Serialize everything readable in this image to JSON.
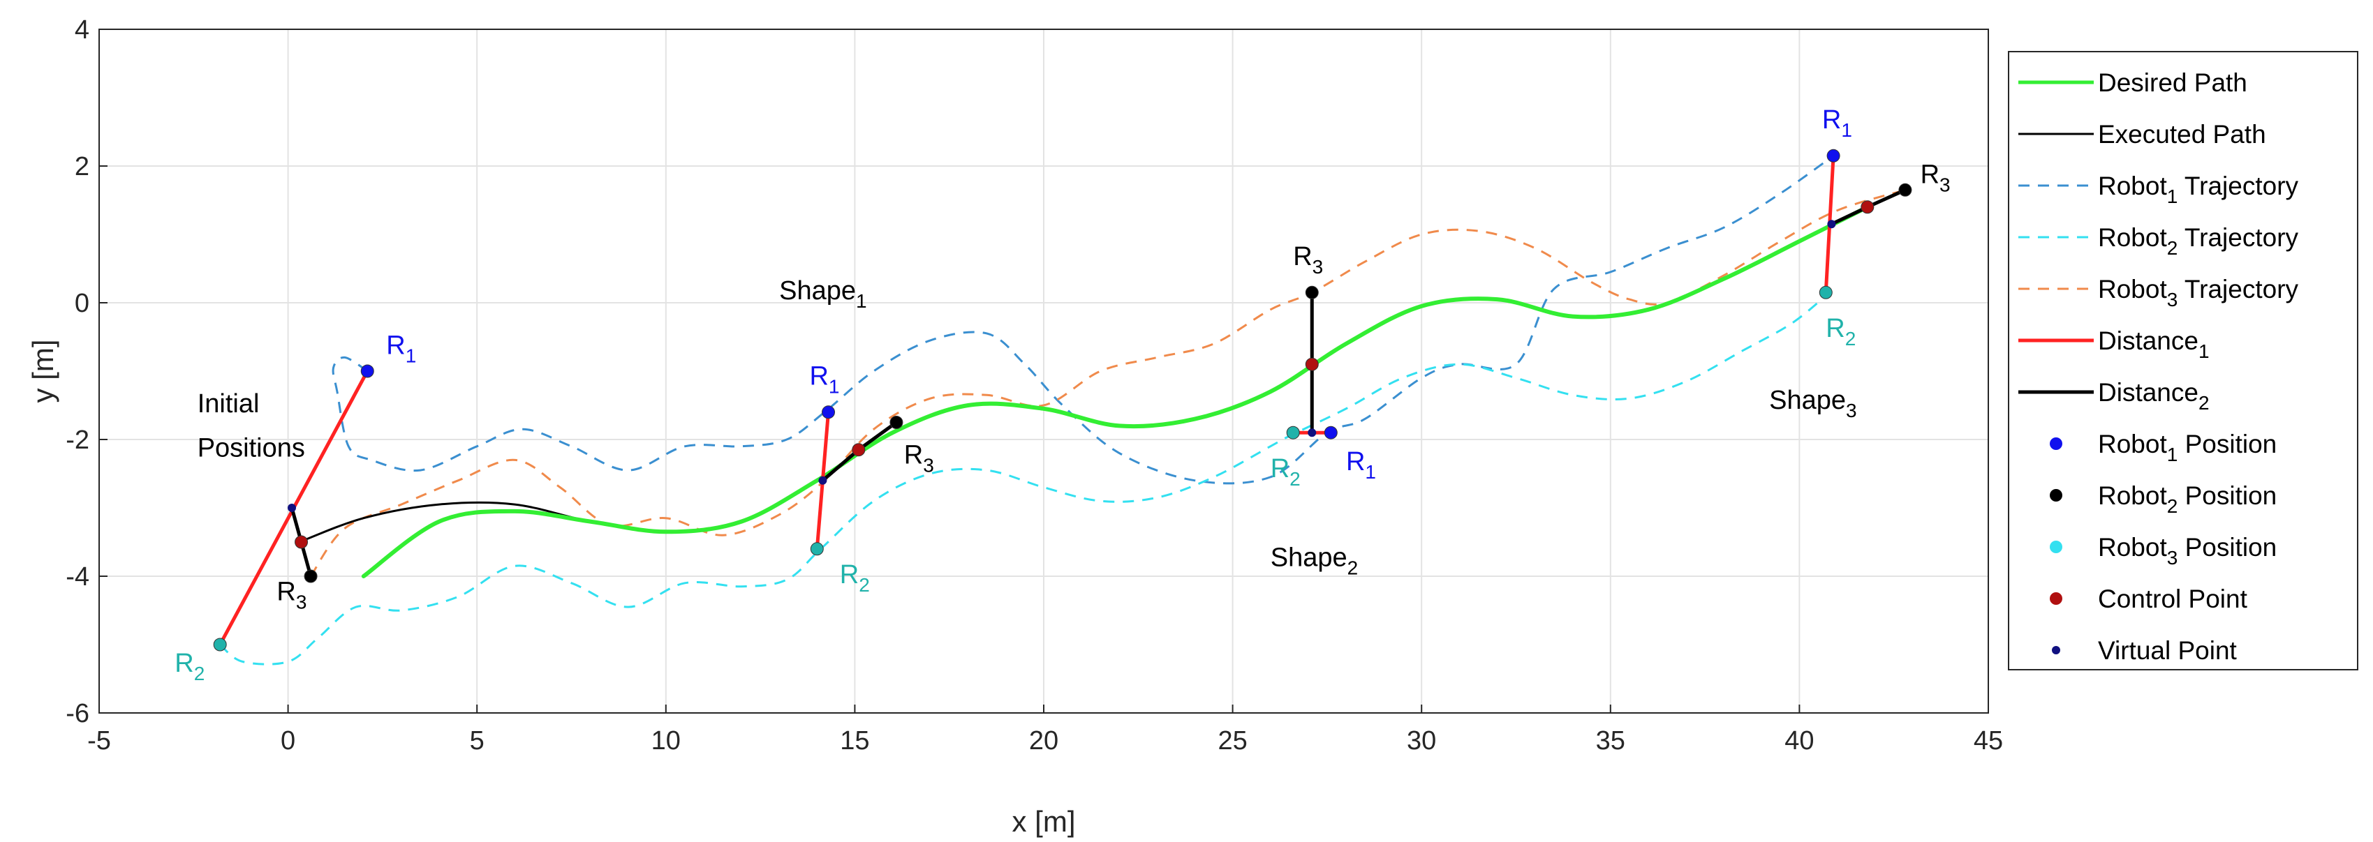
{
  "chart_data": {
    "type": "line",
    "title": "",
    "xlabel": "x [m]",
    "ylabel": "y [m]",
    "xlim": [
      -5,
      45
    ],
    "ylim": [
      -6,
      4
    ],
    "grid": true,
    "x_ticks": [
      -5,
      0,
      5,
      10,
      15,
      20,
      25,
      30,
      35,
      40,
      45
    ],
    "y_ticks": [
      -6,
      -4,
      -2,
      0,
      2,
      4
    ],
    "legend_position": "outside-right",
    "colors": {
      "desired": "#33ee33",
      "executed": "#000000",
      "robot1_traj": "#3a8fd0",
      "robot2_traj": "#33e0f0",
      "robot3_traj": "#f08a4b",
      "distance1": "#ff2222",
      "distance2": "#000000",
      "robot1_pos": "#1010ee",
      "robot2_pos": "#000000",
      "robot3_pos": "#20b2aa",
      "control_point": "#b01010",
      "virtual_point": "#101080"
    },
    "series": [
      {
        "name": "desired_path",
        "style": "solid",
        "color_key": "desired",
        "width": 6,
        "x": [
          2,
          4,
          6,
          8,
          10,
          12,
          14,
          16,
          18,
          20,
          22,
          24,
          26,
          28,
          30,
          32,
          34,
          36,
          38,
          40,
          41.8
        ],
        "y": [
          -4.0,
          -3.2,
          -3.05,
          -3.2,
          -3.35,
          -3.2,
          -2.6,
          -1.9,
          -1.5,
          -1.55,
          -1.8,
          -1.7,
          -1.3,
          -0.6,
          -0.05,
          0.05,
          -0.2,
          -0.1,
          0.35,
          0.9,
          1.4
        ]
      },
      {
        "name": "executed_path",
        "style": "solid",
        "color_key": "executed",
        "width": 3,
        "x": [
          0.3,
          2,
          4,
          6,
          8,
          10,
          12,
          14,
          16,
          18,
          20,
          22,
          24,
          26,
          28,
          30,
          32,
          34,
          36,
          38,
          40,
          41.8
        ],
        "y": [
          -3.5,
          -3.15,
          -2.95,
          -2.95,
          -3.2,
          -3.35,
          -3.2,
          -2.6,
          -1.9,
          -1.5,
          -1.55,
          -1.8,
          -1.7,
          -1.3,
          -0.6,
          -0.05,
          0.05,
          -0.2,
          -0.1,
          0.35,
          0.9,
          1.4
        ]
      },
      {
        "name": "robot1_trajectory",
        "style": "dashed",
        "color_key": "robot1_traj",
        "width": 3,
        "x": [
          2.1,
          1.5,
          1.2,
          1.3,
          1.6,
          2.2,
          3.5,
          5,
          6.2,
          7.5,
          9,
          10.5,
          12,
          13.2,
          14.2,
          15.5,
          17,
          18.5,
          19.5,
          20.5,
          22,
          24,
          26,
          27.5,
          28.5,
          30,
          31,
          32.5,
          33.5,
          35,
          36.5,
          38,
          39.5,
          40.9
        ],
        "y": [
          -1.0,
          -0.8,
          -0.95,
          -1.3,
          -2.1,
          -2.3,
          -2.45,
          -2.1,
          -1.85,
          -2.1,
          -2.45,
          -2.1,
          -2.1,
          -2.0,
          -1.6,
          -1.0,
          -0.55,
          -0.45,
          -0.9,
          -1.5,
          -2.2,
          -2.6,
          -2.55,
          -1.9,
          -1.7,
          -1.1,
          -0.9,
          -0.9,
          0.2,
          0.45,
          0.8,
          1.1,
          1.6,
          2.15
        ]
      },
      {
        "name": "robot2_trajectory",
        "style": "dashed",
        "color_key": "robot2_traj",
        "width": 3,
        "x": [
          -1.8,
          -1.2,
          0,
          0.8,
          1.8,
          3,
          4.5,
          6,
          7.5,
          9,
          10.5,
          12,
          13.2,
          14.1,
          15.5,
          17,
          18.5,
          20,
          21.5,
          23,
          24.5,
          26,
          26.5,
          28,
          29.5,
          31,
          32.5,
          34,
          35.5,
          37,
          38.5,
          39.8,
          40.8
        ],
        "y": [
          -5.0,
          -5.25,
          -5.25,
          -4.9,
          -4.45,
          -4.5,
          -4.3,
          -3.85,
          -4.1,
          -4.45,
          -4.1,
          -4.15,
          -4.05,
          -3.6,
          -2.9,
          -2.5,
          -2.45,
          -2.7,
          -2.9,
          -2.85,
          -2.55,
          -2.1,
          -1.95,
          -1.55,
          -1.1,
          -0.9,
          -1.1,
          -1.35,
          -1.4,
          -1.15,
          -0.7,
          -0.3,
          0.15
        ]
      },
      {
        "name": "robot3_trajectory",
        "style": "dashed",
        "color_key": "robot3_traj",
        "width": 3,
        "x": [
          0.6,
          1.5,
          3,
          4.5,
          6,
          7.2,
          8.5,
          10,
          11.5,
          13,
          14.2,
          15.5,
          17,
          18.5,
          20,
          21.5,
          23,
          24.5,
          26,
          27.1,
          28.5,
          30,
          31.5,
          33,
          34.5,
          35.5,
          36.5,
          38,
          39.5,
          41,
          42.8
        ],
        "y": [
          -4.0,
          -3.3,
          -2.95,
          -2.6,
          -2.3,
          -2.7,
          -3.25,
          -3.15,
          -3.4,
          -3.1,
          -2.6,
          -1.85,
          -1.4,
          -1.35,
          -1.5,
          -1.0,
          -0.8,
          -0.6,
          -0.1,
          0.15,
          0.6,
          1.0,
          1.05,
          0.8,
          0.3,
          0.05,
          0.0,
          0.4,
          0.9,
          1.35,
          1.65
        ]
      },
      {
        "name": "distance1_initial",
        "style": "solid",
        "color_key": "distance1",
        "width": 5,
        "x": [
          2.1,
          -1.8
        ],
        "y": [
          -1.0,
          -5.0
        ]
      },
      {
        "name": "distance1_shape1",
        "style": "solid",
        "color_key": "distance1",
        "width": 5,
        "x": [
          14.3,
          14.0
        ],
        "y": [
          -1.6,
          -3.6
        ]
      },
      {
        "name": "distance1_shape2",
        "style": "solid",
        "color_key": "distance1",
        "width": 5,
        "x": [
          26.6,
          27.6
        ],
        "y": [
          -1.9,
          -1.9
        ]
      },
      {
        "name": "distance1_shape3",
        "style": "solid",
        "color_key": "distance1",
        "width": 5,
        "x": [
          40.9,
          40.7
        ],
        "y": [
          2.15,
          0.15
        ]
      },
      {
        "name": "distance2_initial",
        "style": "solid",
        "color_key": "distance2",
        "width": 5,
        "x": [
          0.1,
          0.35,
          0.6
        ],
        "y": [
          -3.0,
          -3.5,
          -4.0
        ]
      },
      {
        "name": "distance2_shape1",
        "style": "solid",
        "color_key": "distance2",
        "width": 5,
        "x": [
          14.15,
          15.1,
          16.1
        ],
        "y": [
          -2.6,
          -2.15,
          -1.75
        ]
      },
      {
        "name": "distance2_shape2",
        "style": "solid",
        "color_key": "distance2",
        "width": 5,
        "x": [
          27.1,
          27.1,
          27.1
        ],
        "y": [
          0.15,
          -0.9,
          -1.9
        ]
      },
      {
        "name": "distance2_shape3",
        "style": "solid",
        "color_key": "distance2",
        "width": 5,
        "x": [
          40.85,
          41.8,
          42.8
        ],
        "y": [
          1.15,
          1.4,
          1.65
        ]
      }
    ],
    "points": [
      {
        "label": "robot1-initial",
        "x": 2.1,
        "y": -1.0,
        "color_key": "robot1_pos"
      },
      {
        "label": "robot1-shape1",
        "x": 14.3,
        "y": -1.6,
        "color_key": "robot1_pos"
      },
      {
        "label": "robot1-shape2",
        "x": 27.6,
        "y": -1.9,
        "color_key": "robot1_pos"
      },
      {
        "label": "robot1-shape3",
        "x": 40.9,
        "y": 2.15,
        "color_key": "robot1_pos"
      },
      {
        "label": "robot2-initial",
        "x": -1.8,
        "y": -5.0,
        "color_key": "robot3_pos"
      },
      {
        "label": "robot2-shape1",
        "x": 14.0,
        "y": -3.6,
        "color_key": "robot3_pos"
      },
      {
        "label": "robot2-shape2",
        "x": 26.6,
        "y": -1.9,
        "color_key": "robot3_pos"
      },
      {
        "label": "robot2-shape3",
        "x": 40.7,
        "y": 0.15,
        "color_key": "robot3_pos"
      },
      {
        "label": "robot3-initial",
        "x": 0.6,
        "y": -4.0,
        "color_key": "robot2_pos"
      },
      {
        "label": "robot3-shape1",
        "x": 16.1,
        "y": -1.75,
        "color_key": "robot2_pos"
      },
      {
        "label": "robot3-shape2",
        "x": 27.1,
        "y": 0.15,
        "color_key": "robot2_pos"
      },
      {
        "label": "robot3-shape3",
        "x": 42.8,
        "y": 1.65,
        "color_key": "robot2_pos"
      },
      {
        "label": "control-initial",
        "x": 0.35,
        "y": -3.5,
        "color_key": "control_point"
      },
      {
        "label": "control-shape1",
        "x": 15.1,
        "y": -2.15,
        "color_key": "control_point"
      },
      {
        "label": "control-shape2",
        "x": 27.1,
        "y": -0.9,
        "color_key": "control_point"
      },
      {
        "label": "control-shape3",
        "x": 41.8,
        "y": 1.4,
        "color_key": "control_point"
      },
      {
        "label": "virtual-initial",
        "x": 0.1,
        "y": -3.0,
        "color_key": "virtual_point"
      },
      {
        "label": "virtual-shape1",
        "x": 14.15,
        "y": -2.6,
        "color_key": "virtual_point"
      },
      {
        "label": "virtual-shape2",
        "x": 27.1,
        "y": -1.9,
        "color_key": "virtual_point"
      },
      {
        "label": "virtual-shape3",
        "x": 40.85,
        "y": 1.15,
        "color_key": "virtual_point"
      }
    ],
    "annotations": [
      {
        "text": "Initial",
        "x": -2.4,
        "y": -1.6,
        "color_key": "executed"
      },
      {
        "text": "Positions",
        "x": -2.4,
        "y": -2.25,
        "color_key": "executed"
      },
      {
        "text": "R",
        "sub": "1",
        "x": 2.6,
        "y": -0.75,
        "color_key": "robot1_pos"
      },
      {
        "text": "R",
        "sub": "2",
        "x": -3.0,
        "y": -5.4,
        "color_key": "robot3_pos"
      },
      {
        "text": "R",
        "sub": "3",
        "x": -0.3,
        "y": -4.35,
        "color_key": "executed"
      },
      {
        "text": "Shape",
        "sub": "1",
        "x": 13.0,
        "y": 0.05,
        "color_key": "executed"
      },
      {
        "text": "R",
        "sub": "1",
        "x": 13.8,
        "y": -1.2,
        "color_key": "robot1_pos"
      },
      {
        "text": "R",
        "sub": "2",
        "x": 14.6,
        "y": -4.1,
        "color_key": "robot3_pos"
      },
      {
        "text": "R",
        "sub": "3",
        "x": 16.3,
        "y": -2.35,
        "color_key": "executed"
      },
      {
        "text": "R",
        "sub": "3",
        "x": 26.6,
        "y": 0.55,
        "color_key": "executed"
      },
      {
        "text": "R",
        "sub": "2",
        "x": 26.0,
        "y": -2.55,
        "color_key": "robot3_pos"
      },
      {
        "text": "R",
        "sub": "1",
        "x": 28.0,
        "y": -2.45,
        "color_key": "robot1_pos"
      },
      {
        "text": "Shape",
        "sub": "2",
        "x": 26.0,
        "y": -3.85,
        "color_key": "executed"
      },
      {
        "text": "R",
        "sub": "1",
        "x": 40.6,
        "y": 2.55,
        "color_key": "robot1_pos"
      },
      {
        "text": "R",
        "sub": "3",
        "x": 43.2,
        "y": 1.75,
        "color_key": "executed"
      },
      {
        "text": "R",
        "sub": "2",
        "x": 40.7,
        "y": -0.5,
        "color_key": "robot3_pos"
      },
      {
        "text": "Shape",
        "sub": "3",
        "x": 39.2,
        "y": -1.55,
        "color_key": "executed"
      }
    ]
  },
  "legend": [
    {
      "label": "Desired Path",
      "sub": "",
      "suffix": "",
      "kind": "line",
      "color_key": "desired",
      "dash": ""
    },
    {
      "label": "Executed Path",
      "sub": "",
      "suffix": "",
      "kind": "line",
      "color_key": "executed",
      "dash": ""
    },
    {
      "label": "Robot",
      "sub": "1",
      "suffix": " Trajectory",
      "kind": "line",
      "color_key": "robot1_traj",
      "dash": "16 12"
    },
    {
      "label": "Robot",
      "sub": "2",
      "suffix": " Trajectory",
      "kind": "line",
      "color_key": "robot2_traj",
      "dash": "16 12"
    },
    {
      "label": "Robot",
      "sub": "3",
      "suffix": " Trajectory",
      "kind": "line",
      "color_key": "robot3_traj",
      "dash": "16 12"
    },
    {
      "label": "Distance",
      "sub": "1",
      "suffix": "",
      "kind": "line",
      "color_key": "distance1",
      "dash": ""
    },
    {
      "label": "Distance",
      "sub": "2",
      "suffix": "",
      "kind": "line",
      "color_key": "distance2",
      "dash": ""
    },
    {
      "label": "Robot",
      "sub": "1",
      "suffix": " Position",
      "kind": "dot",
      "color_key": "robot1_pos",
      "dash": ""
    },
    {
      "label": "Robot",
      "sub": "2",
      "suffix": " Position",
      "kind": "dot",
      "color_key": "robot2_pos",
      "dash": ""
    },
    {
      "label": "Robot",
      "sub": "3",
      "suffix": " Position",
      "kind": "dot",
      "color_key": "robot2_traj",
      "dash": ""
    },
    {
      "label": "Control Point",
      "sub": "",
      "suffix": "",
      "kind": "dot",
      "color_key": "control_point",
      "dash": ""
    },
    {
      "label": "Virtual Point",
      "sub": "",
      "suffix": "",
      "kind": "smalldot",
      "color_key": "virtual_point",
      "dash": ""
    }
  ]
}
